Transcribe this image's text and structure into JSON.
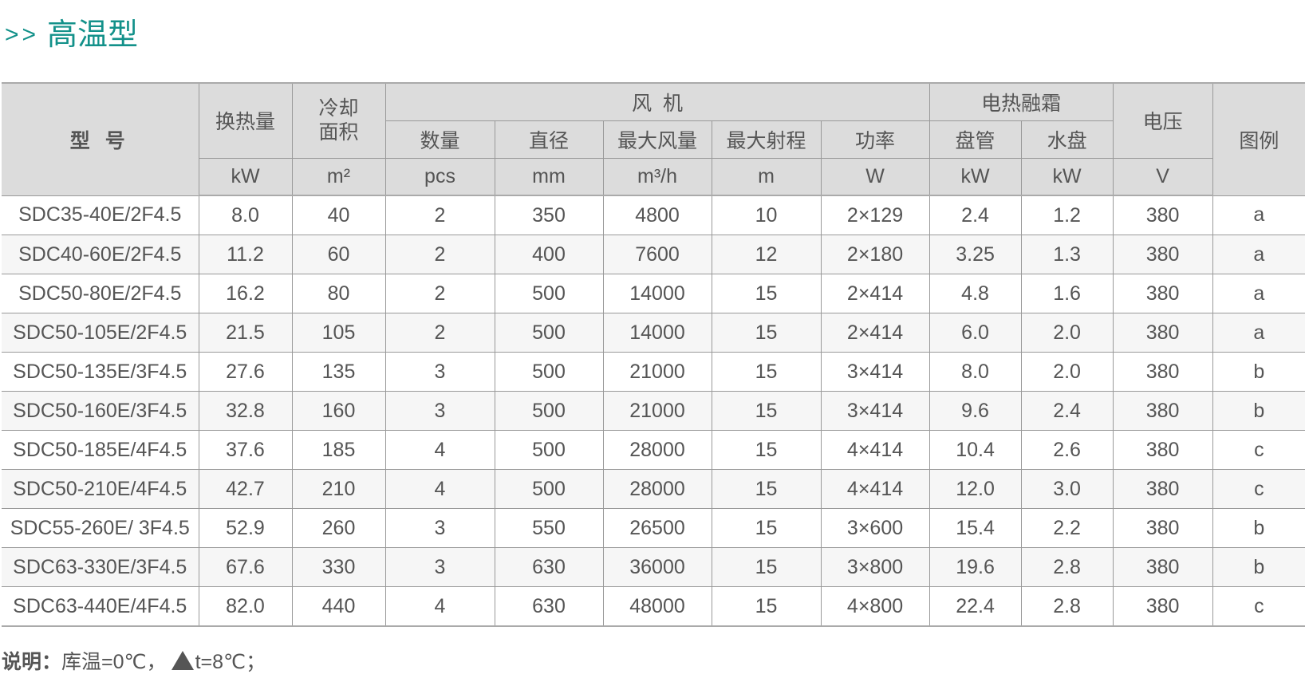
{
  "title": {
    "arrows": ">>",
    "text": "高温型"
  },
  "header": {
    "model": "型 号",
    "heat_exchange": "换热量",
    "cooling_area": "冷却面积",
    "fan_group": "风  机",
    "fan_count": "数量",
    "fan_diameter": "直径",
    "max_airflow": "最大风量",
    "max_throw": "最大射程",
    "power": "功率",
    "defrost_group": "电热融霜",
    "coil": "盘管",
    "drip_tray": "水盘",
    "voltage": "电压",
    "legend": "图例",
    "units": {
      "heat_exchange": "kW",
      "cooling_area": "m²",
      "fan_count": "pcs",
      "fan_diameter": "mm",
      "max_airflow": "m³/h",
      "max_throw": "m",
      "power": "W",
      "coil": "kW",
      "drip_tray": "kW",
      "voltage": "V"
    }
  },
  "rows": [
    [
      "SDC35-40E/2F4.5",
      "8.0",
      "40",
      "2",
      "350",
      "4800",
      "10",
      "2×129",
      "2.4",
      "1.2",
      "380",
      "a"
    ],
    [
      "SDC40-60E/2F4.5",
      "11.2",
      "60",
      "2",
      "400",
      "7600",
      "12",
      "2×180",
      "3.25",
      "1.3",
      "380",
      "a"
    ],
    [
      "SDC50-80E/2F4.5",
      "16.2",
      "80",
      "2",
      "500",
      "14000",
      "15",
      "2×414",
      "4.8",
      "1.6",
      "380",
      "a"
    ],
    [
      "SDC50-105E/2F4.5",
      "21.5",
      "105",
      "2",
      "500",
      "14000",
      "15",
      "2×414",
      "6.0",
      "2.0",
      "380",
      "a"
    ],
    [
      "SDC50-135E/3F4.5",
      "27.6",
      "135",
      "3",
      "500",
      "21000",
      "15",
      "3×414",
      "8.0",
      "2.0",
      "380",
      "b"
    ],
    [
      "SDC50-160E/3F4.5",
      "32.8",
      "160",
      "3",
      "500",
      "21000",
      "15",
      "3×414",
      "9.6",
      "2.4",
      "380",
      "b"
    ],
    [
      "SDC50-185E/4F4.5",
      "37.6",
      "185",
      "4",
      "500",
      "28000",
      "15",
      "4×414",
      "10.4",
      "2.6",
      "380",
      "c"
    ],
    [
      "SDC50-210E/4F4.5",
      "42.7",
      "210",
      "4",
      "500",
      "28000",
      "15",
      "4×414",
      "12.0",
      "3.0",
      "380",
      "c"
    ],
    [
      "SDC55-260E/ 3F4.5",
      "52.9",
      "260",
      "3",
      "550",
      "26500",
      "15",
      "3×600",
      "15.4",
      "2.2",
      "380",
      "b"
    ],
    [
      "SDC63-330E/3F4.5",
      "67.6",
      "330",
      "3",
      "630",
      "36000",
      "15",
      "3×800",
      "19.6",
      "2.8",
      "380",
      "b"
    ],
    [
      "SDC63-440E/4F4.5",
      "82.0",
      "440",
      "4",
      "630",
      "48000",
      "15",
      "4×800",
      "22.4",
      "2.8",
      "380",
      "c"
    ]
  ],
  "note": {
    "label": "说明：",
    "text1": "库温=0℃，",
    "icon": "triangle-icon",
    "text2": "t=8℃；"
  }
}
